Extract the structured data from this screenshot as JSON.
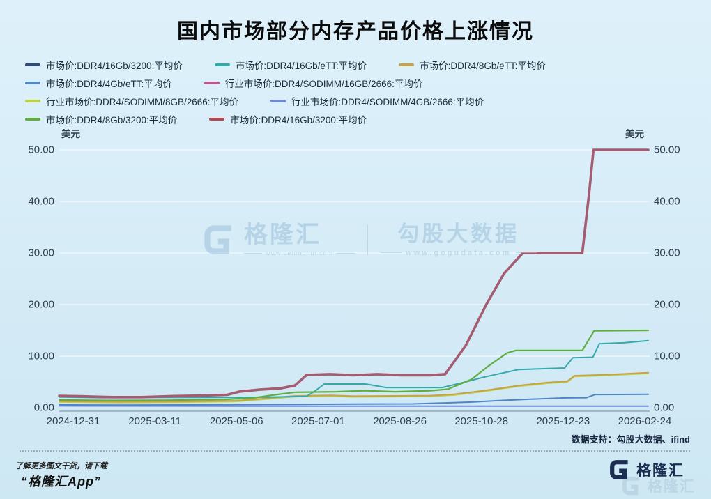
{
  "promo": {
    "line1": "了解更多图文干货，请下载",
    "line2": "“格隆汇App”"
  },
  "datasource_note": "数据支持：勾股大数据、ifind",
  "watermark": {
    "brand": "格隆汇",
    "brand_url": "www.gelonghui.com",
    "product": "勾股大数据",
    "product_url": "www.gogudata.com"
  },
  "logo": {
    "text": "格隆汇"
  },
  "chart_data": {
    "type": "line",
    "title": "国内市场部分内存产品价格上涨情况",
    "grid": true,
    "legend_position": "top-left",
    "y_axis": {
      "unit": "美元",
      "dual": true,
      "min": 0,
      "max": 50,
      "tick_labels": [
        "0.00",
        "10.00",
        "20.00",
        "30.00",
        "40.00",
        "50.00"
      ],
      "tick_values": [
        0,
        10,
        20,
        30,
        40,
        50
      ]
    },
    "x_axis": {
      "tick_labels": [
        "2024-12-31",
        "2025-03-11",
        "2025-05-06",
        "2025-07-01",
        "2025-08-26",
        "2025-10-28",
        "2025-12-23",
        "2026-02-24"
      ]
    },
    "legend_rows": [
      [
        0,
        1,
        2
      ],
      [
        3,
        4
      ],
      [
        5,
        6
      ],
      [
        7,
        8
      ]
    ],
    "draw_order": [
      0,
      4,
      6,
      5,
      2,
      3,
      1,
      7,
      8
    ],
    "series": [
      {
        "name": "市场价:DDR4/16Gb/3200:平均价",
        "color": "#2f4b7c",
        "width": 2,
        "points": [
          [
            0,
            2.3
          ],
          [
            0.04,
            2.2
          ],
          [
            0.09,
            2.05
          ],
          [
            0.14,
            2.05
          ],
          [
            0.19,
            2.25
          ],
          [
            0.24,
            2.35
          ],
          [
            0.285,
            2.5
          ],
          [
            0.305,
            3.1
          ],
          [
            0.34,
            3.5
          ],
          [
            0.375,
            3.75
          ],
          [
            0.4,
            4.3
          ],
          [
            0.42,
            6.35
          ],
          [
            0.46,
            6.5
          ],
          [
            0.5,
            6.3
          ],
          [
            0.54,
            6.5
          ],
          [
            0.58,
            6.3
          ],
          [
            0.63,
            6.3
          ],
          [
            0.655,
            6.5
          ],
          [
            0.69,
            12
          ],
          [
            0.725,
            20
          ],
          [
            0.755,
            26
          ],
          [
            0.787,
            30
          ],
          [
            0.888,
            30
          ],
          [
            0.9,
            42
          ],
          [
            0.907,
            50
          ],
          [
            1,
            50
          ]
        ]
      },
      {
        "name": "市场价:DDR4/16Gb/eTT:平均价",
        "color": "#35a8ac",
        "width": 2,
        "points": [
          [
            0,
            2.05
          ],
          [
            0.07,
            1.95
          ],
          [
            0.16,
            2.0
          ],
          [
            0.28,
            2.0
          ],
          [
            0.36,
            2.05
          ],
          [
            0.42,
            2.2
          ],
          [
            0.435,
            3.3
          ],
          [
            0.45,
            4.6
          ],
          [
            0.52,
            4.6
          ],
          [
            0.555,
            3.9
          ],
          [
            0.65,
            3.9
          ],
          [
            0.69,
            5.0
          ],
          [
            0.72,
            5.9
          ],
          [
            0.78,
            7.4
          ],
          [
            0.858,
            7.7
          ],
          [
            0.872,
            9.7
          ],
          [
            0.906,
            9.8
          ],
          [
            0.917,
            12.4
          ],
          [
            0.96,
            12.6
          ],
          [
            1,
            13
          ]
        ]
      },
      {
        "name": "市场价:DDR4/8Gb/eTT:平均价",
        "color": "#c7a24b",
        "width": 2,
        "points": [
          [
            0,
            1.25
          ],
          [
            0.1,
            1.15
          ],
          [
            0.2,
            1.2
          ],
          [
            0.3,
            1.35
          ],
          [
            0.35,
            1.8
          ],
          [
            0.4,
            2.3
          ],
          [
            0.46,
            2.4
          ],
          [
            0.5,
            2.25
          ],
          [
            0.57,
            2.3
          ],
          [
            0.63,
            2.35
          ],
          [
            0.67,
            2.6
          ],
          [
            0.72,
            3.3
          ],
          [
            0.78,
            4.3
          ],
          [
            0.83,
            4.9
          ],
          [
            0.862,
            5.1
          ],
          [
            0.875,
            6.2
          ],
          [
            0.93,
            6.4
          ],
          [
            1,
            6.8
          ]
        ]
      },
      {
        "name": "市场价:DDR4/4Gb/eTT:平均价",
        "color": "#4f86c6",
        "width": 2,
        "points": [
          [
            0,
            0.55
          ],
          [
            0.1,
            0.5
          ],
          [
            0.25,
            0.55
          ],
          [
            0.4,
            0.65
          ],
          [
            0.5,
            0.7
          ],
          [
            0.6,
            0.75
          ],
          [
            0.65,
            0.9
          ],
          [
            0.7,
            1.1
          ],
          [
            0.75,
            1.4
          ],
          [
            0.8,
            1.65
          ],
          [
            0.86,
            1.9
          ],
          [
            0.895,
            1.95
          ],
          [
            0.91,
            2.55
          ],
          [
            1,
            2.6
          ]
        ]
      },
      {
        "name": "行业市场价:DDR4/SODIMM/16GB/2666:平均价",
        "color": "#b75a8c",
        "width": 2,
        "points": [
          [
            0,
            2.3
          ],
          [
            0.04,
            2.2
          ],
          [
            0.09,
            2.05
          ],
          [
            0.14,
            2.05
          ],
          [
            0.19,
            2.25
          ],
          [
            0.24,
            2.35
          ],
          [
            0.285,
            2.5
          ],
          [
            0.305,
            3.1
          ],
          [
            0.34,
            3.5
          ],
          [
            0.375,
            3.75
          ],
          [
            0.4,
            4.3
          ],
          [
            0.42,
            6.35
          ],
          [
            0.46,
            6.5
          ],
          [
            0.5,
            6.3
          ],
          [
            0.54,
            6.5
          ],
          [
            0.58,
            6.3
          ],
          [
            0.63,
            6.3
          ],
          [
            0.655,
            6.5
          ],
          [
            0.69,
            12
          ],
          [
            0.725,
            20
          ],
          [
            0.755,
            26
          ],
          [
            0.787,
            30
          ],
          [
            0.888,
            30
          ],
          [
            0.9,
            42
          ],
          [
            0.907,
            50
          ],
          [
            1,
            50
          ]
        ]
      },
      {
        "name": "行业市场价:DDR4/SODIMM/8GB/2666:平均价",
        "color": "#bdd243",
        "width": 2,
        "points": [
          [
            0,
            1.1
          ],
          [
            0.1,
            1.0
          ],
          [
            0.2,
            1.05
          ],
          [
            0.3,
            1.2
          ],
          [
            0.35,
            1.65
          ],
          [
            0.4,
            2.15
          ],
          [
            0.46,
            2.25
          ],
          [
            0.5,
            2.1
          ],
          [
            0.57,
            2.15
          ],
          [
            0.63,
            2.2
          ],
          [
            0.67,
            2.45
          ],
          [
            0.72,
            3.15
          ],
          [
            0.78,
            4.15
          ],
          [
            0.83,
            4.75
          ],
          [
            0.862,
            4.95
          ],
          [
            0.875,
            6.05
          ],
          [
            0.93,
            6.25
          ],
          [
            1,
            6.65
          ]
        ]
      },
      {
        "name": "行业市场价:DDR4/SODIMM/4GB/2666:平均价",
        "color": "#6e88d5",
        "width": 2,
        "points": [
          [
            0,
            0.35
          ],
          [
            0.3,
            0.3
          ],
          [
            0.7,
            0.3
          ],
          [
            1,
            0.3
          ]
        ]
      },
      {
        "name": "市场价:DDR4/8Gb/3200:平均价",
        "color": "#5fae3f",
        "width": 2.2,
        "points": [
          [
            0,
            1.5
          ],
          [
            0.08,
            1.4
          ],
          [
            0.18,
            1.45
          ],
          [
            0.28,
            1.6
          ],
          [
            0.33,
            1.9
          ],
          [
            0.36,
            2.4
          ],
          [
            0.4,
            3.0
          ],
          [
            0.47,
            3.1
          ],
          [
            0.52,
            3.3
          ],
          [
            0.57,
            3.1
          ],
          [
            0.63,
            3.3
          ],
          [
            0.66,
            3.6
          ],
          [
            0.7,
            5.5
          ],
          [
            0.73,
            8.2
          ],
          [
            0.76,
            10.6
          ],
          [
            0.775,
            11.1
          ],
          [
            0.888,
            11.1
          ],
          [
            0.908,
            14.9
          ],
          [
            1,
            15
          ]
        ]
      },
      {
        "name": "市场价:DDR4/16Gb/3200:平均价",
        "color": "#b2494f",
        "line_color": "#a55b70",
        "width": 3.6,
        "points": [
          [
            0,
            2.3
          ],
          [
            0.04,
            2.2
          ],
          [
            0.09,
            2.05
          ],
          [
            0.14,
            2.05
          ],
          [
            0.19,
            2.25
          ],
          [
            0.24,
            2.35
          ],
          [
            0.285,
            2.5
          ],
          [
            0.305,
            3.1
          ],
          [
            0.34,
            3.5
          ],
          [
            0.375,
            3.75
          ],
          [
            0.4,
            4.3
          ],
          [
            0.42,
            6.35
          ],
          [
            0.46,
            6.5
          ],
          [
            0.5,
            6.3
          ],
          [
            0.54,
            6.5
          ],
          [
            0.58,
            6.3
          ],
          [
            0.63,
            6.3
          ],
          [
            0.655,
            6.5
          ],
          [
            0.69,
            12
          ],
          [
            0.725,
            20
          ],
          [
            0.755,
            26
          ],
          [
            0.787,
            30
          ],
          [
            0.888,
            30
          ],
          [
            0.9,
            42
          ],
          [
            0.907,
            50
          ],
          [
            1,
            50
          ]
        ]
      }
    ]
  }
}
